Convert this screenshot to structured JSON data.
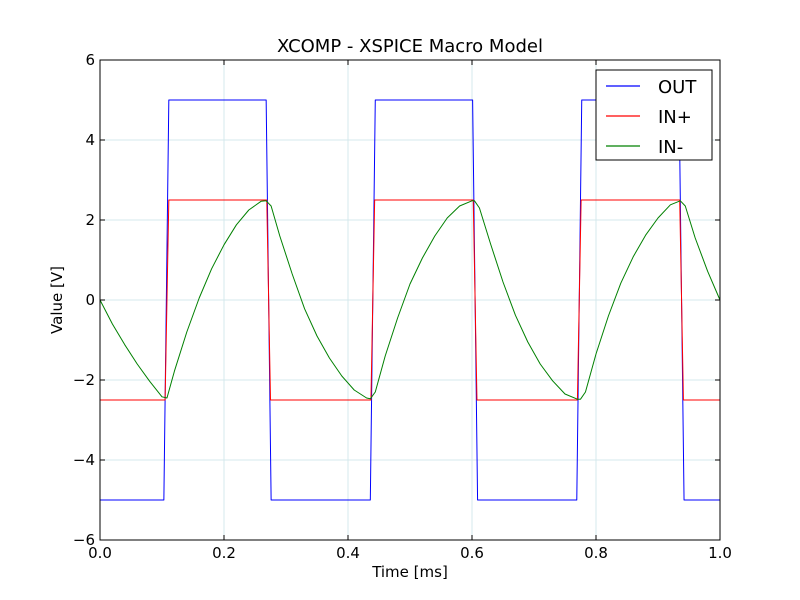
{
  "chart_data": {
    "type": "line",
    "title": "XCOMP - XSPICE Macro Model",
    "xlabel": "Time  [ms]",
    "ylabel": "Value [V]",
    "xlim": [
      0.0,
      1.0
    ],
    "ylim": [
      -6,
      6
    ],
    "xticks": [
      0.0,
      0.2,
      0.4,
      0.6,
      0.8,
      1.0
    ],
    "xtick_labels": [
      "0.0",
      "0.2",
      "0.4",
      "0.6",
      "0.8",
      "1.0"
    ],
    "yticks": [
      -6,
      -4,
      -2,
      0,
      2,
      4,
      6
    ],
    "ytick_labels": [
      "−6",
      "−4",
      "−2",
      "0",
      "2",
      "4",
      "6"
    ],
    "grid": true,
    "legend_position": "top-right",
    "series": [
      {
        "name": "OUT",
        "color": "#0000ff",
        "x": [
          0.0,
          0.103,
          0.111,
          0.268,
          0.276,
          0.436,
          0.444,
          0.601,
          0.609,
          0.769,
          0.777,
          0.934,
          0.942,
          1.0
        ],
        "y": [
          -5,
          -5,
          5,
          5,
          -5,
          -5,
          5,
          5,
          -5,
          -5,
          5,
          5,
          -5,
          -5
        ]
      },
      {
        "name": "IN+",
        "color": "#ff0000",
        "x": [
          0.0,
          0.105,
          0.111,
          0.269,
          0.275,
          0.437,
          0.443,
          0.602,
          0.608,
          0.77,
          0.776,
          0.935,
          0.941,
          1.0
        ],
        "y": [
          -2.5,
          -2.5,
          2.5,
          2.5,
          -2.5,
          -2.5,
          2.5,
          2.5,
          -2.5,
          -2.5,
          2.5,
          2.5,
          -2.5,
          -2.5
        ]
      },
      {
        "name": "IN-",
        "color": "#008000",
        "x": [
          0.0,
          0.02,
          0.04,
          0.06,
          0.08,
          0.1,
          0.108,
          0.12,
          0.14,
          0.16,
          0.18,
          0.2,
          0.22,
          0.24,
          0.26,
          0.268,
          0.276,
          0.29,
          0.31,
          0.33,
          0.35,
          0.37,
          0.39,
          0.41,
          0.43,
          0.436,
          0.444,
          0.46,
          0.48,
          0.5,
          0.52,
          0.54,
          0.56,
          0.58,
          0.6,
          0.604,
          0.612,
          0.63,
          0.65,
          0.67,
          0.69,
          0.71,
          0.73,
          0.75,
          0.77,
          0.775,
          0.783,
          0.8,
          0.82,
          0.84,
          0.86,
          0.88,
          0.9,
          0.92,
          0.936,
          0.944,
          0.96,
          0.98,
          1.0
        ],
        "y": [
          0.0,
          -0.6,
          -1.12,
          -1.6,
          -2.03,
          -2.42,
          -2.45,
          -1.78,
          -0.8,
          0.05,
          0.78,
          1.38,
          1.88,
          2.25,
          2.47,
          2.48,
          2.35,
          1.6,
          0.65,
          -0.22,
          -0.9,
          -1.45,
          -1.9,
          -2.25,
          -2.45,
          -2.47,
          -2.3,
          -1.4,
          -0.45,
          0.4,
          1.05,
          1.6,
          2.05,
          2.35,
          2.48,
          2.48,
          2.3,
          1.4,
          0.45,
          -0.38,
          -1.05,
          -1.6,
          -2.02,
          -2.35,
          -2.48,
          -2.48,
          -2.3,
          -1.35,
          -0.4,
          0.42,
          1.08,
          1.62,
          2.05,
          2.38,
          2.48,
          2.35,
          1.55,
          0.72,
          0.0
        ]
      }
    ]
  }
}
